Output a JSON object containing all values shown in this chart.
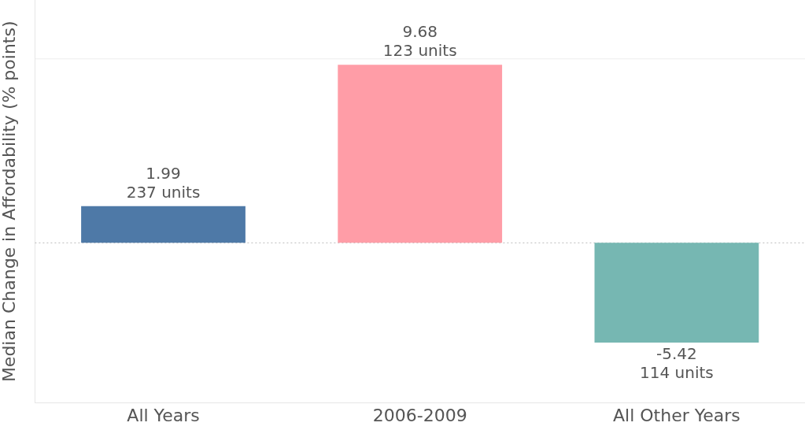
{
  "chart_data": {
    "type": "bar",
    "ylabel": "Median Change in Affordability (% points)",
    "categories": [
      "All Years",
      "2006-2009",
      "All Other Years"
    ],
    "values": [
      1.99,
      9.68,
      -5.42
    ],
    "colors": [
      "#4e79a7",
      "#ff9da7",
      "#76b7b2"
    ],
    "data_labels": true,
    "annotations": [
      {
        "text": "237 units",
        "x": "All Years",
        "y": 1.99
      },
      {
        "text": "123 units",
        "x": "2006-2009",
        "y": 9.68
      },
      {
        "text": "114 units",
        "x": "All Other Years",
        "y": -5.42
      }
    ],
    "ylim": [
      -8.7,
      13.2
    ],
    "tick_labels": "x",
    "legend": false,
    "ref_lines": [
      {
        "axis": "y",
        "value": 10,
        "label": null,
        "color": "#ececec",
        "line_style": "solid"
      },
      {
        "axis": "y",
        "value": 0,
        "label": null,
        "color": "#bbbbbb",
        "line_style": "dotted"
      }
    ]
  }
}
